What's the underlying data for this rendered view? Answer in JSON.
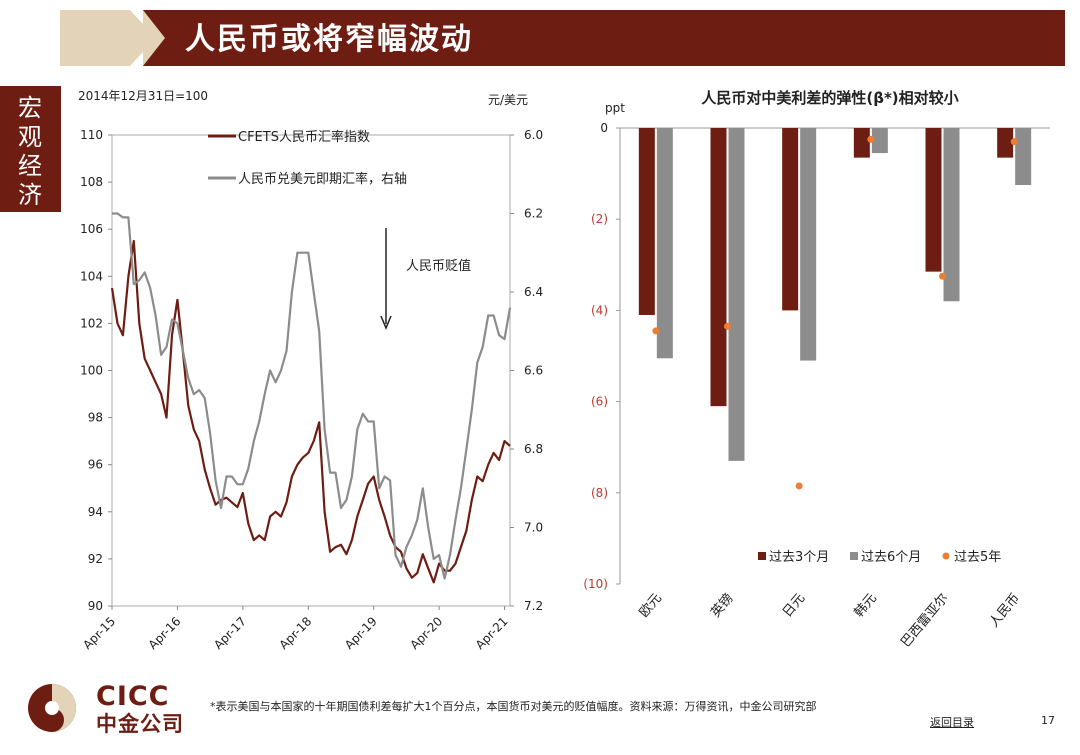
{
  "header": {
    "title": "人民币或将窄幅波动",
    "side_tab": "宏观经济",
    "accent_color": "#6e1d12",
    "chevron_color": "#e3d3b9"
  },
  "footer": {
    "logo_en": "CICC",
    "logo_cn": "中金公司",
    "footnote": "*表示美国与本国家的十年期国债利差每扩大1个百分点，本国货币对美元的贬值幅度。资料来源：万得资讯，中金公司研究部",
    "back_link": "返回目录",
    "page_number": "17"
  },
  "chart_data": [
    {
      "type": "line",
      "base_note": "2014年12月31日=100",
      "right_unit": "元/美元",
      "annotation": "人民币贬值",
      "x_ticks": [
        "Apr-15",
        "Apr-16",
        "Apr-17",
        "Apr-18",
        "Apr-19",
        "Apr-20",
        "Apr-21"
      ],
      "x_range": [
        "2015-04",
        "2021-05"
      ],
      "left_axis": {
        "ticks": [
          "90",
          "92",
          "94",
          "96",
          "98",
          "100",
          "102",
          "104",
          "106",
          "108",
          "110"
        ],
        "ylim": [
          90,
          110
        ]
      },
      "right_axis": {
        "ticks": [
          "6.0",
          "6.2",
          "6.4",
          "6.6",
          "6.8",
          "7.0",
          "7.2"
        ],
        "ylim": [
          6.0,
          7.2
        ],
        "inverted": true
      },
      "legend": [
        "CFETS人民币汇率指数",
        "人民币兑美元即期汇率，右轴"
      ],
      "series": [
        {
          "name": "CFETS人民币汇率指数",
          "axis": "left",
          "color": "#6e1d12",
          "x": [
            "2015-04",
            "2015-05",
            "2015-06",
            "2015-07",
            "2015-08",
            "2015-09",
            "2015-10",
            "2015-11",
            "2015-12",
            "2016-01",
            "2016-02",
            "2016-03",
            "2016-04",
            "2016-05",
            "2016-06",
            "2016-07",
            "2016-08",
            "2016-09",
            "2016-10",
            "2016-11",
            "2016-12",
            "2017-01",
            "2017-02",
            "2017-03",
            "2017-04",
            "2017-05",
            "2017-06",
            "2017-07",
            "2017-08",
            "2017-09",
            "2017-10",
            "2017-11",
            "2017-12",
            "2018-01",
            "2018-02",
            "2018-03",
            "2018-04",
            "2018-05",
            "2018-06",
            "2018-07",
            "2018-08",
            "2018-09",
            "2018-10",
            "2018-11",
            "2018-12",
            "2019-01",
            "2019-02",
            "2019-03",
            "2019-04",
            "2019-05",
            "2019-06",
            "2019-07",
            "2019-08",
            "2019-09",
            "2019-10",
            "2019-11",
            "2019-12",
            "2020-01",
            "2020-02",
            "2020-03",
            "2020-04",
            "2020-05",
            "2020-06",
            "2020-07",
            "2020-08",
            "2020-09",
            "2020-10",
            "2020-11",
            "2020-12",
            "2021-01",
            "2021-02",
            "2021-03",
            "2021-04",
            "2021-05"
          ],
          "values": [
            103.5,
            102,
            101.5,
            104,
            105.5,
            102,
            100.5,
            100,
            99.5,
            99,
            98,
            101.5,
            103,
            100.8,
            98.5,
            97.5,
            97,
            95.8,
            95,
            94.3,
            94.5,
            94.6,
            94.4,
            94.2,
            94.8,
            93.5,
            92.8,
            93,
            92.8,
            93.8,
            94,
            93.8,
            94.4,
            95.5,
            96,
            96.3,
            96.5,
            97,
            97.8,
            94,
            92.3,
            92.5,
            92.6,
            92.2,
            92.8,
            93.8,
            94.5,
            95.2,
            95.5,
            94.5,
            93.8,
            93,
            92.5,
            92.3,
            91.6,
            91.2,
            91.4,
            92.2,
            91.6,
            91,
            91.8,
            91.5,
            91.5,
            91.8,
            92.5,
            93.2,
            94.5,
            95.5,
            95.3,
            96,
            96.5,
            96.2,
            97,
            96.8
          ]
        },
        {
          "name": "人民币兑美元即期汇率，右轴",
          "axis": "right",
          "color": "#8c8c8c",
          "x": [
            "2015-04",
            "2015-05",
            "2015-06",
            "2015-07",
            "2015-08",
            "2015-09",
            "2015-10",
            "2015-11",
            "2015-12",
            "2016-01",
            "2016-02",
            "2016-03",
            "2016-04",
            "2016-05",
            "2016-06",
            "2016-07",
            "2016-08",
            "2016-09",
            "2016-10",
            "2016-11",
            "2016-12",
            "2017-01",
            "2017-02",
            "2017-03",
            "2017-04",
            "2017-05",
            "2017-06",
            "2017-07",
            "2017-08",
            "2017-09",
            "2017-10",
            "2017-11",
            "2017-12",
            "2018-01",
            "2018-02",
            "2018-03",
            "2018-04",
            "2018-05",
            "2018-06",
            "2018-07",
            "2018-08",
            "2018-09",
            "2018-10",
            "2018-11",
            "2018-12",
            "2019-01",
            "2019-02",
            "2019-03",
            "2019-04",
            "2019-05",
            "2019-06",
            "2019-07",
            "2019-08",
            "2019-09",
            "2019-10",
            "2019-11",
            "2019-12",
            "2020-01",
            "2020-02",
            "2020-03",
            "2020-04",
            "2020-05",
            "2020-06",
            "2020-07",
            "2020-08",
            "2020-09",
            "2020-10",
            "2020-11",
            "2020-12",
            "2021-01",
            "2021-02",
            "2021-03",
            "2021-04",
            "2021-05"
          ],
          "values": [
            6.2,
            6.2,
            6.21,
            6.21,
            6.38,
            6.37,
            6.35,
            6.39,
            6.46,
            6.56,
            6.54,
            6.47,
            6.48,
            6.55,
            6.62,
            6.66,
            6.65,
            6.67,
            6.76,
            6.88,
            6.95,
            6.87,
            6.87,
            6.89,
            6.89,
            6.85,
            6.78,
            6.73,
            6.66,
            6.6,
            6.63,
            6.6,
            6.55,
            6.4,
            6.3,
            6.3,
            6.3,
            6.4,
            6.5,
            6.75,
            6.86,
            6.86,
            6.95,
            6.93,
            6.87,
            6.75,
            6.71,
            6.73,
            6.73,
            6.9,
            6.87,
            6.88,
            7.07,
            7.1,
            7.05,
            7.02,
            6.98,
            6.9,
            7.0,
            7.08,
            7.07,
            7.13,
            7.07,
            6.98,
            6.9,
            6.8,
            6.7,
            6.58,
            6.54,
            6.46,
            6.46,
            6.51,
            6.52,
            6.44
          ]
        }
      ]
    },
    {
      "type": "bar",
      "title": "人民币对中美利差的弹性(β*)相对较小",
      "y_unit": "ppt",
      "categories": [
        "欧元",
        "英镑",
        "日元",
        "韩元",
        "巴西雷亚尔",
        "人民币"
      ],
      "y_ticks": [
        "0",
        "(2)",
        "(4)",
        "(6)",
        "(8)",
        "(10)"
      ],
      "ylim": [
        -10,
        0
      ],
      "legend": [
        "过去3个月",
        "过去6个月",
        "过去5年"
      ],
      "series": [
        {
          "name": "过去3个月",
          "kind": "bar",
          "color": "#6e1d12",
          "values": [
            -4.1,
            -6.1,
            -4.0,
            -0.65,
            -3.15,
            -0.65
          ]
        },
        {
          "name": "过去6个月",
          "kind": "bar",
          "color": "#8c8c8c",
          "values": [
            -5.05,
            -7.3,
            -5.1,
            -0.55,
            -3.8,
            -1.25
          ]
        },
        {
          "name": "过去5年",
          "kind": "point",
          "color": "#ed7d31",
          "values": [
            -4.45,
            -4.35,
            -7.85,
            -0.25,
            -3.25,
            -0.3
          ]
        }
      ]
    }
  ]
}
